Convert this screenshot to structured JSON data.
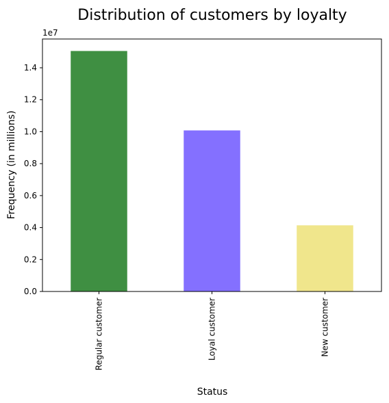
{
  "chart_data": {
    "type": "bar",
    "title": "Distribution of customers by loyalty",
    "xlabel": "Status",
    "ylabel": "Frequency (in millions)",
    "y_offset_label": "1e7",
    "categories": [
      "Regular customer",
      "Loyal customer",
      "New customer"
    ],
    "values": [
      15050000,
      10080000,
      4140000
    ],
    "colors": [
      "#3f8f42",
      "#8470ff",
      "#f0e68c"
    ],
    "ylim": [
      0,
      15800000
    ],
    "yticks": [
      0,
      2000000,
      4000000,
      6000000,
      8000000,
      10000000,
      12000000,
      14000000
    ],
    "ytick_labels": [
      "0.0",
      "0.2",
      "0.4",
      "0.6",
      "0.8",
      "1.0",
      "1.2",
      "1.4"
    ],
    "grid": false,
    "legend": "none"
  }
}
